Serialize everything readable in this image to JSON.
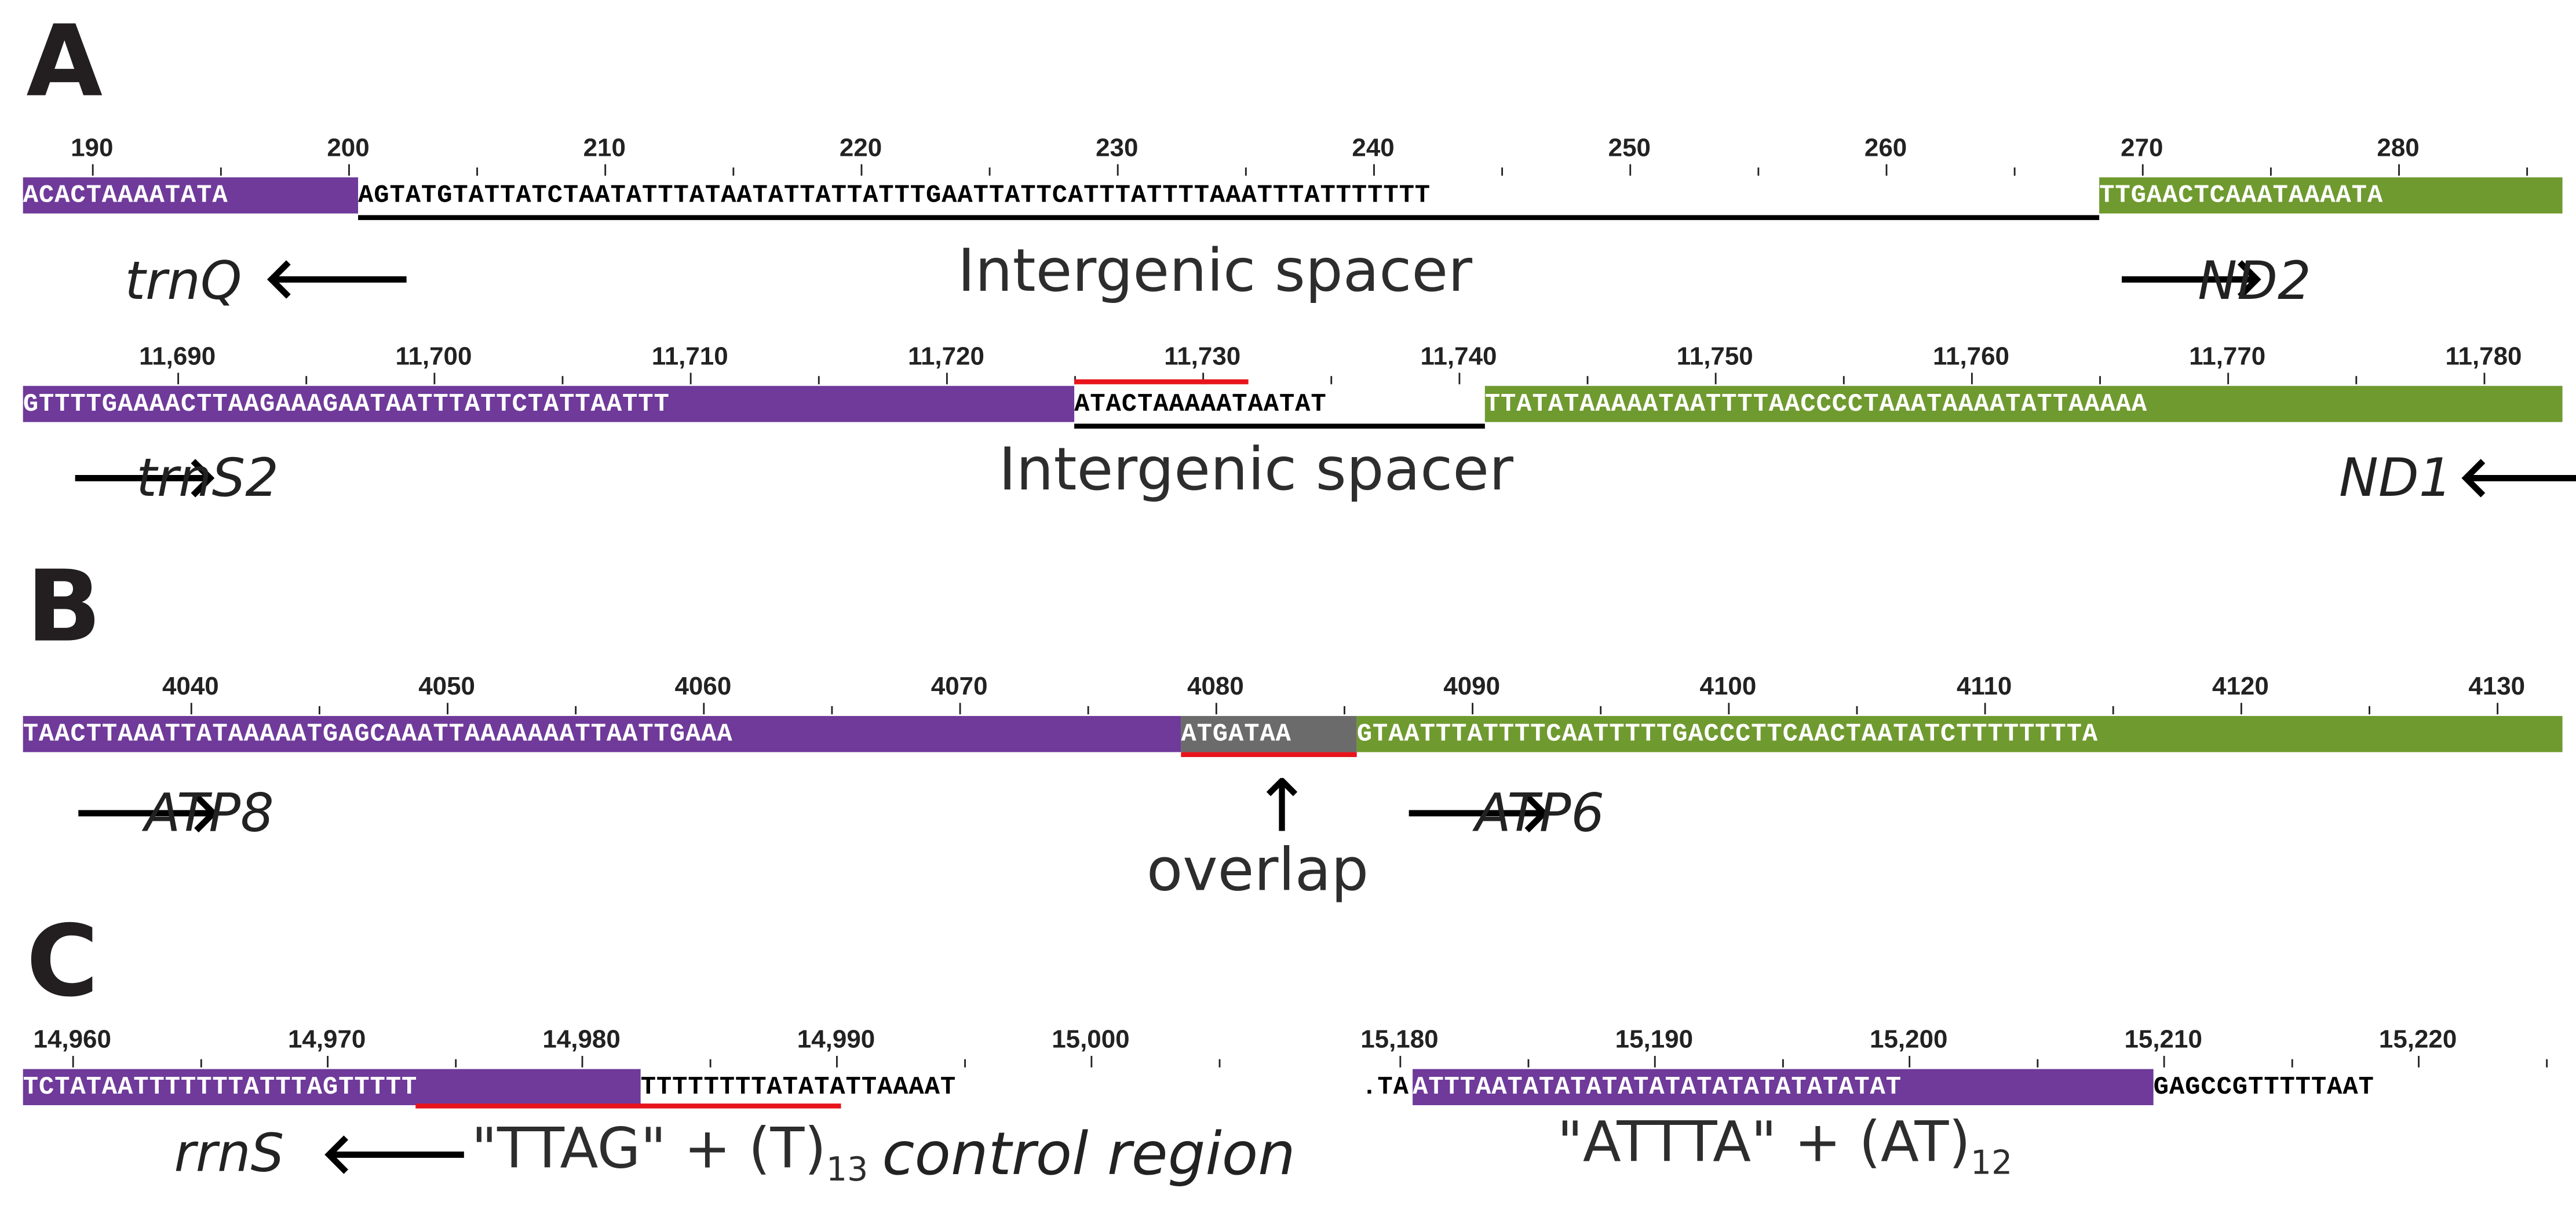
{
  "colors": {
    "trna_rrna": "#6f3a9a",
    "gene": "#6f9a2f",
    "overlap": "#6b6b6b",
    "highlight": "#e8141c",
    "spacer_line": "#000000"
  },
  "panels": {
    "a": "A",
    "b": "B",
    "c": "C"
  },
  "rowA1": {
    "ticks": [
      "190",
      "200",
      "210",
      "220",
      "230",
      "240",
      "250",
      "260",
      "270",
      "280"
    ],
    "seq": {
      "trnq": "ACACTAAAATATA",
      "spacer": "AGTATGTATTATCTAATATTTATAATATTATTATTTGAATTATTCATTTATTTTAAATTTATTTTTTT",
      "nd2": "TTGAACTCAAATAAAATA"
    },
    "labels": {
      "trnq": "trnQ",
      "spacer": "Intergenic spacer",
      "nd2": "ND2"
    },
    "arrows": {
      "trnq": "🡐",
      "nd2": "🡒"
    }
  },
  "rowA2": {
    "ticks": [
      "11,690",
      "11,700",
      "11,710",
      "11,720",
      "11,730",
      "11,740",
      "11,750",
      "11,760",
      "11,770",
      "11,780"
    ],
    "seq": {
      "trns2": "GTTTTGAAAACTTAAGAAAGAATAATTTATTCTATTAATTT",
      "spacer": "ATACTAAAAATAATAT",
      "nd1": "TTATATAAAAATAATTTTAACCCCTAAATAAAATATTAAAAA"
    },
    "labels": {
      "trns2": "trnS2",
      "spacer": "Intergenic spacer",
      "nd1": "ND1"
    },
    "arrows": {
      "trns2": "🡒",
      "nd1": "🡐"
    }
  },
  "rowB": {
    "ticks": [
      "4040",
      "4050",
      "4060",
      "4070",
      "4080",
      "4090",
      "4100",
      "4110",
      "4120",
      "4130"
    ],
    "seq": {
      "atp8": "TAACTTAAATTATAAAAATGAGCAAATTAAAAAAATTAATTGAAA",
      "overlap": "ATGATAA",
      "atp6": "GTAATTTATTTTCAATTTTTGACCCTTCAACTAATATCTTTTTTTTA"
    },
    "labels": {
      "atp8": "ATP8",
      "overlap": "overlap",
      "atp6": "ATP6"
    },
    "arrows": {
      "atp8": "🡒",
      "overlap": "↑",
      "atp6": "🡒"
    }
  },
  "rowC1": {
    "ticks": [
      "14,960",
      "14,970",
      "14,980",
      "14,990",
      "15,000"
    ],
    "seq": {
      "rrns": "TCTATAATTTTTTTATTTAGTTTTT",
      "tail": "TTTTTTTTATATATTAAAAT"
    },
    "labels": {
      "rrns": "rrnS",
      "repeat": "\"TTAG\" + (T)",
      "repeat_sub": "13",
      "control": "control region"
    },
    "arrows": {
      "rrns": "🡐"
    }
  },
  "rowC2": {
    "ticks": [
      "15,180",
      "15,190",
      "15,200",
      "15,210",
      "15,220"
    ],
    "seq": {
      "lead": ".TA",
      "repeat": "ATTTAATATATATATATATATATATATATAT",
      "tail": "GAGCCGTTTTTAAT"
    },
    "labels": {
      "repeat": "\"ATTTA\" + (AT)",
      "repeat_sub": "12"
    }
  }
}
